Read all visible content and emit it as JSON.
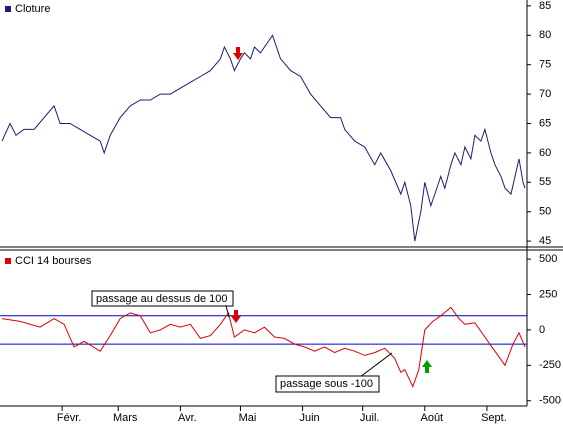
{
  "chart_data": [
    {
      "type": "line",
      "x": [
        1,
        5,
        8,
        12,
        17,
        22,
        27,
        30,
        35,
        40,
        45,
        50,
        52,
        55,
        60,
        65,
        70,
        75,
        80,
        85,
        90,
        95,
        100,
        105,
        110,
        112,
        115,
        117,
        120,
        122,
        125,
        127,
        130,
        132,
        136,
        140,
        145,
        150,
        155,
        160,
        165,
        170,
        172,
        177,
        182,
        187,
        190,
        195,
        200,
        202,
        205,
        207,
        210,
        212,
        215,
        217,
        220,
        222,
        225,
        227,
        230,
        232,
        235,
        237,
        240,
        242,
        245,
        247,
        250,
        252,
        255,
        257,
        259,
        261,
        262
      ],
      "series": [
        {
          "name": "Cloture",
          "color": "#1c1c70",
          "values": [
            62,
            65,
            63,
            64,
            64,
            66,
            68,
            65,
            65,
            64,
            63,
            62,
            60,
            63,
            66,
            68,
            69,
            69,
            70,
            70,
            71,
            72,
            73,
            74,
            76,
            78,
            76,
            74,
            76,
            77,
            76,
            78,
            77,
            78,
            80,
            76,
            74,
            73,
            70,
            68,
            66,
            66,
            64,
            62,
            61,
            58,
            60,
            57,
            53,
            55,
            51,
            45,
            50,
            55,
            51,
            53,
            56,
            54,
            58,
            60,
            58,
            61,
            59,
            63,
            62,
            64,
            60,
            58,
            56,
            54,
            53,
            56,
            59,
            55,
            54
          ]
        }
      ],
      "xlim": [
        0,
        263
      ],
      "ylim": [
        44,
        86
      ],
      "yticks": [
        45,
        50,
        55,
        60,
        65,
        70,
        75,
        80,
        85
      ]
    },
    {
      "type": "line",
      "x": [
        1,
        10,
        20,
        27,
        32,
        37,
        42,
        50,
        55,
        60,
        65,
        70,
        75,
        80,
        85,
        90,
        95,
        100,
        105,
        110,
        114,
        117,
        122,
        127,
        132,
        137,
        142,
        147,
        152,
        157,
        162,
        167,
        172,
        177,
        182,
        187,
        192,
        197,
        200,
        202,
        206,
        209,
        212,
        216,
        220,
        225,
        229,
        232,
        237,
        242,
        247,
        252,
        256,
        259,
        262
      ],
      "series": [
        {
          "name": "CCI 14 bourses",
          "color": "#e00000",
          "values": [
            80,
            60,
            20,
            80,
            40,
            -120,
            -80,
            -150,
            -40,
            80,
            120,
            100,
            -20,
            0,
            40,
            20,
            40,
            -60,
            -40,
            40,
            120,
            -50,
            0,
            -20,
            20,
            -50,
            -60,
            -100,
            -120,
            -150,
            -120,
            -160,
            -130,
            -150,
            -180,
            -160,
            -130,
            -200,
            -300,
            -280,
            -400,
            -280,
            0,
            60,
            100,
            160,
            80,
            40,
            50,
            -50,
            -150,
            -250,
            -100,
            -20,
            -120
          ]
        }
      ],
      "xlim": [
        0,
        263
      ],
      "ylim": [
        -530,
        550
      ],
      "yticks": [
        -500,
        -250,
        0,
        250,
        500
      ],
      "hlines": [
        100,
        -100
      ],
      "hline_color": "#0000cc",
      "xticks": [
        {
          "value": 31,
          "label": "Févr."
        },
        {
          "value": 59,
          "label": "Mars"
        },
        {
          "value": 90,
          "label": "Avr."
        },
        {
          "value": 120,
          "label": "Mai"
        },
        {
          "value": 151,
          "label": "Juin"
        },
        {
          "value": 181,
          "label": "Juil."
        },
        {
          "value": 212,
          "label": "Août"
        },
        {
          "value": 243,
          "label": "Sept."
        }
      ],
      "annotations": [
        {
          "text": "passage au dessus de 100"
        },
        {
          "text": "passage sous -100"
        }
      ]
    }
  ]
}
